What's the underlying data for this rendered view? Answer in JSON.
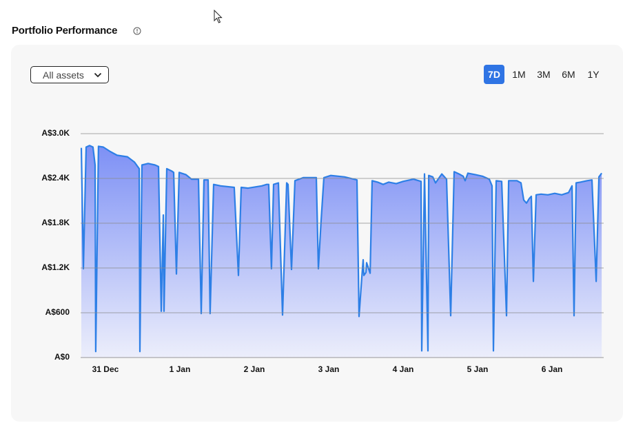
{
  "header": {
    "title": "Portfolio Performance"
  },
  "filter": {
    "selected": "All assets"
  },
  "ranges": {
    "options": [
      "7D",
      "1M",
      "3M",
      "6M",
      "1Y"
    ],
    "active": "7D"
  },
  "chart_data": {
    "type": "area",
    "color": "#2d7fe6",
    "fill_top": "#7d90f5",
    "fill_bottom": "#eceefb",
    "grid": true,
    "xlim": [
      -0.333,
      6.694
    ],
    "ylim": [
      0,
      3000
    ],
    "xticks": [
      {
        "value": 0,
        "label": "31 Dec"
      },
      {
        "value": 1,
        "label": "1 Jan"
      },
      {
        "value": 2,
        "label": "2 Jan"
      },
      {
        "value": 3,
        "label": "3 Jan"
      },
      {
        "value": 4,
        "label": "4 Jan"
      },
      {
        "value": 5,
        "label": "5 Jan"
      },
      {
        "value": 6,
        "label": "6 Jan"
      }
    ],
    "yticks": [
      {
        "value": 0,
        "label": "A$0"
      },
      {
        "value": 600,
        "label": "A$600"
      },
      {
        "value": 1200,
        "label": "A$1.2K"
      },
      {
        "value": 1800,
        "label": "A$1.8K"
      },
      {
        "value": 2400,
        "label": "A$2.4K"
      },
      {
        "value": 3000,
        "label": "A$3.0K"
      }
    ],
    "x": [
      -0.324,
      -0.296,
      -0.259,
      -0.213,
      -0.167,
      -0.139,
      -0.13,
      -0.093,
      -0.028,
      0.065,
      0.157,
      0.296,
      0.389,
      0.454,
      0.463,
      0.491,
      0.574,
      0.667,
      0.713,
      0.75,
      0.778,
      0.787,
      0.824,
      0.889,
      0.917,
      0.954,
      0.991,
      1.083,
      1.157,
      1.25,
      1.287,
      1.324,
      1.38,
      1.407,
      1.454,
      1.546,
      1.731,
      1.787,
      1.824,
      1.917,
      2.102,
      2.167,
      2.194,
      2.231,
      2.259,
      2.324,
      2.38,
      2.435,
      2.454,
      2.5,
      2.546,
      2.657,
      2.796,
      2.833,
      2.861,
      2.898,
      2.935,
      3.028,
      3.213,
      3.38,
      3.407,
      3.444,
      3.463,
      3.472,
      3.5,
      3.509,
      3.556,
      3.583,
      3.657,
      3.731,
      3.806,
      3.907,
      4.0,
      4.139,
      4.241,
      4.25,
      4.287,
      4.333,
      4.343,
      4.398,
      4.435,
      4.519,
      4.583,
      4.639,
      4.685,
      4.75,
      4.806,
      4.833,
      4.87,
      4.972,
      5.065,
      5.157,
      5.194,
      5.213,
      5.25,
      5.324,
      5.389,
      5.417,
      5.528,
      5.583,
      5.62,
      5.657,
      5.694,
      5.722,
      5.75,
      5.787,
      5.852,
      5.944,
      6.037,
      6.13,
      6.222,
      6.269,
      6.296,
      6.324,
      6.38,
      6.472,
      6.537,
      6.593,
      6.63,
      6.667
    ],
    "values": [
      2810,
      1190,
      2820,
      2840,
      2820,
      2580,
      80,
      2830,
      2820,
      2760,
      2710,
      2690,
      2620,
      2530,
      80,
      2580,
      2600,
      2580,
      2560,
      620,
      1910,
      620,
      2530,
      2500,
      2480,
      1120,
      2480,
      2450,
      2390,
      2390,
      590,
      2380,
      2380,
      590,
      2320,
      2300,
      2280,
      1100,
      2280,
      2270,
      2300,
      2320,
      2320,
      1190,
      2320,
      2340,
      570,
      2340,
      2320,
      1180,
      2370,
      2410,
      2410,
      2410,
      1190,
      1840,
      2410,
      2440,
      2420,
      2380,
      550,
      1070,
      1310,
      1100,
      1140,
      1270,
      1130,
      2370,
      2350,
      2320,
      2350,
      2330,
      2360,
      2390,
      2360,
      90,
      2460,
      90,
      2440,
      2420,
      2340,
      2460,
      2390,
      560,
      2490,
      2460,
      2430,
      2370,
      2470,
      2450,
      2430,
      2390,
      2300,
      90,
      2370,
      2360,
      560,
      2370,
      2370,
      2340,
      2110,
      2070,
      2130,
      2160,
      1020,
      2180,
      2190,
      2180,
      2200,
      2180,
      2210,
      2300,
      560,
      2340,
      2350,
      2370,
      2380,
      1020,
      2420,
      2470
    ]
  }
}
